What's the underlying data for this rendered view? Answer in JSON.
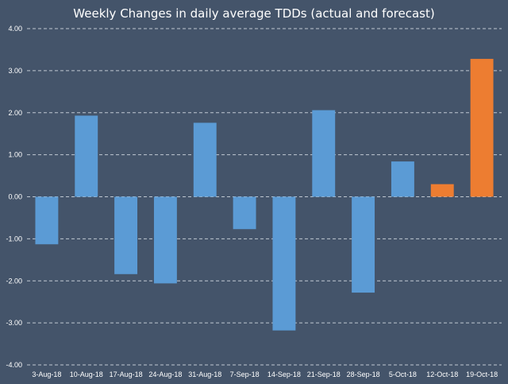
{
  "chart_data": {
    "type": "bar",
    "title": "Weekly Changes in daily average TDDs (actual and forecast)",
    "xlabel": "",
    "ylabel": "",
    "ylim": [
      -4,
      4
    ],
    "yticks": [
      "4.00",
      "3.00",
      "2.00",
      "1.00",
      "0.00",
      "-1.00",
      "-2.00",
      "-3.00",
      "-4.00"
    ],
    "grid": true,
    "categories": [
      "3-Aug-18",
      "10-Aug-18",
      "17-Aug-18",
      "24-Aug-18",
      "31-Aug-18",
      "7-Sep-18",
      "14-Sep-18",
      "21-Sep-18",
      "28-Sep-18",
      "5-Oct-18",
      "12-Oct-18",
      "19-Oct-18"
    ],
    "values": [
      -1.13,
      1.93,
      -1.84,
      -2.06,
      1.76,
      -0.77,
      -3.18,
      2.06,
      -2.28,
      0.84,
      0.3,
      3.28
    ],
    "kinds": [
      "actual",
      "actual",
      "actual",
      "actual",
      "actual",
      "actual",
      "actual",
      "actual",
      "actual",
      "actual",
      "forecast",
      "forecast"
    ],
    "colors": {
      "actual": "#5b9bd5",
      "forecast": "#ed7d31",
      "background": "#44546a",
      "grid": "#c0c8d2",
      "text": "#ffffff"
    }
  }
}
